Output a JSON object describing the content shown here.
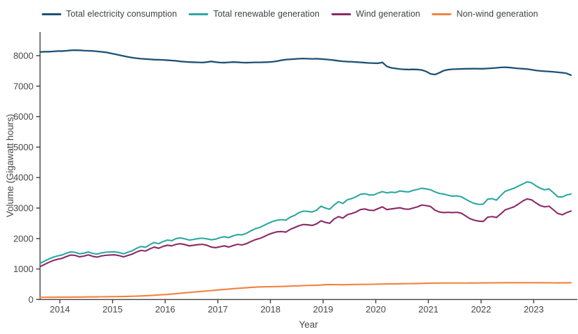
{
  "page": {
    "background": "#ffffff"
  },
  "axes": {
    "x": {
      "label": "Year",
      "ticks": [
        "2014",
        "2015",
        "2016",
        "2017",
        "2018",
        "2019",
        "2020",
        "2021",
        "2022",
        "2023"
      ]
    },
    "y": {
      "label": "Volume (Gigawatt hours)",
      "ticks": [
        0,
        1000,
        2000,
        3000,
        4000,
        5000,
        6000,
        7000,
        8000
      ]
    }
  },
  "chart_data": {
    "type": "line",
    "title": "",
    "xlabel": "Year",
    "ylabel": "Volume (Gigawatt hours)",
    "legend_position": "top",
    "grid": false,
    "xlim": [
      2013.58,
      2023.83
    ],
    "ylim": [
      0,
      8750
    ],
    "x_sampling": "monthly",
    "x_first_point": "2013-08",
    "x_last_point": "2023-09",
    "x_start": 2013.625,
    "x_step": 0.0833333,
    "n_points": 122,
    "xticks": [
      2014,
      2015,
      2016,
      2017,
      2018,
      2019,
      2020,
      2021,
      2022,
      2023
    ],
    "yticks": [
      0,
      1000,
      2000,
      3000,
      4000,
      5000,
      6000,
      7000,
      8000
    ],
    "series": [
      {
        "name": "Total electricity consumption",
        "color": "#1e5175",
        "values": [
          8120,
          8130,
          8130,
          8140,
          8150,
          8150,
          8160,
          8175,
          8180,
          8175,
          8165,
          8160,
          8155,
          8140,
          8125,
          8110,
          8080,
          8050,
          8020,
          7990,
          7960,
          7935,
          7915,
          7900,
          7890,
          7880,
          7870,
          7865,
          7860,
          7850,
          7840,
          7830,
          7810,
          7800,
          7790,
          7785,
          7780,
          7775,
          7790,
          7810,
          7790,
          7775,
          7770,
          7780,
          7790,
          7785,
          7775,
          7770,
          7775,
          7780,
          7780,
          7785,
          7790,
          7800,
          7820,
          7850,
          7870,
          7880,
          7890,
          7900,
          7905,
          7900,
          7895,
          7900,
          7890,
          7880,
          7865,
          7850,
          7830,
          7815,
          7805,
          7800,
          7790,
          7780,
          7770,
          7760,
          7755,
          7750,
          7780,
          7650,
          7600,
          7580,
          7560,
          7550,
          7545,
          7550,
          7545,
          7530,
          7480,
          7400,
          7380,
          7440,
          7510,
          7540,
          7555,
          7560,
          7565,
          7570,
          7570,
          7575,
          7570,
          7570,
          7580,
          7590,
          7600,
          7615,
          7620,
          7610,
          7595,
          7580,
          7570,
          7560,
          7540,
          7515,
          7500,
          7490,
          7480,
          7470,
          7455,
          7440,
          7420,
          7360
        ]
      },
      {
        "name": "Total renewable generation",
        "color": "#2aa8a0",
        "values": [
          1190,
          1260,
          1330,
          1390,
          1430,
          1460,
          1520,
          1560,
          1545,
          1500,
          1520,
          1560,
          1510,
          1490,
          1530,
          1550,
          1560,
          1565,
          1540,
          1500,
          1550,
          1600,
          1680,
          1740,
          1710,
          1800,
          1870,
          1830,
          1900,
          1950,
          1930,
          2000,
          2020,
          1990,
          1950,
          1970,
          2000,
          2010,
          1990,
          1960,
          1980,
          2030,
          2060,
          2030,
          2090,
          2130,
          2120,
          2170,
          2250,
          2320,
          2360,
          2430,
          2500,
          2560,
          2600,
          2620,
          2600,
          2700,
          2760,
          2850,
          2900,
          2890,
          2870,
          2930,
          3060,
          3000,
          2960,
          3100,
          3210,
          3150,
          3270,
          3310,
          3370,
          3450,
          3470,
          3430,
          3430,
          3490,
          3540,
          3500,
          3520,
          3510,
          3560,
          3540,
          3530,
          3580,
          3610,
          3650,
          3630,
          3600,
          3530,
          3480,
          3460,
          3420,
          3390,
          3400,
          3370,
          3290,
          3210,
          3150,
          3120,
          3130,
          3290,
          3310,
          3260,
          3410,
          3550,
          3600,
          3650,
          3720,
          3790,
          3860,
          3830,
          3730,
          3650,
          3600,
          3630,
          3500,
          3370,
          3360,
          3430,
          3460
        ]
      },
      {
        "name": "Wind generation",
        "color": "#8b2866",
        "values": [
          1080,
          1150,
          1220,
          1280,
          1320,
          1350,
          1410,
          1460,
          1445,
          1400,
          1425,
          1465,
          1415,
          1390,
          1430,
          1450,
          1460,
          1465,
          1440,
          1400,
          1445,
          1490,
          1560,
          1610,
          1590,
          1660,
          1720,
          1680,
          1740,
          1780,
          1760,
          1810,
          1830,
          1800,
          1760,
          1780,
          1800,
          1810,
          1780,
          1720,
          1700,
          1730,
          1760,
          1720,
          1770,
          1810,
          1790,
          1830,
          1900,
          1960,
          2000,
          2060,
          2130,
          2180,
          2220,
          2230,
          2210,
          2300,
          2360,
          2420,
          2460,
          2450,
          2430,
          2480,
          2580,
          2530,
          2500,
          2640,
          2720,
          2670,
          2780,
          2820,
          2870,
          2950,
          2970,
          2930,
          2920,
          2980,
          3040,
          2950,
          2970,
          2990,
          3010,
          2970,
          2960,
          3000,
          3040,
          3100,
          3080,
          3050,
          2930,
          2870,
          2850,
          2860,
          2850,
          2860,
          2830,
          2740,
          2650,
          2600,
          2570,
          2560,
          2700,
          2720,
          2690,
          2810,
          2940,
          2990,
          3040,
          3130,
          3230,
          3300,
          3270,
          3170,
          3080,
          3040,
          3060,
          2940,
          2820,
          2780,
          2850,
          2900
        ]
      },
      {
        "name": "Non-wind generation",
        "color": "#f2823f",
        "values": [
          70,
          72,
          73,
          74,
          75,
          75,
          76,
          77,
          78,
          80,
          82,
          84,
          85,
          87,
          89,
          91,
          93,
          95,
          97,
          99,
          102,
          106,
          110,
          116,
          122,
          130,
          140,
          150,
          158,
          165,
          178,
          192,
          205,
          218,
          230,
          243,
          255,
          268,
          280,
          292,
          305,
          318,
          330,
          342,
          355,
          365,
          375,
          385,
          395,
          405,
          412,
          416,
          418,
          420,
          424,
          428,
          432,
          438,
          444,
          450,
          455,
          460,
          465,
          468,
          472,
          488,
          490,
          488,
          486,
          485,
          488,
          490,
          492,
          494,
          495,
          497,
          500,
          505,
          508,
          510,
          512,
          514,
          516,
          518,
          520,
          522,
          525,
          528,
          532,
          536,
          538,
          539,
          540,
          540,
          540,
          540,
          540,
          540,
          541,
          542,
          543,
          544,
          545,
          546,
          547,
          548,
          549,
          550,
          550,
          550,
          550,
          550,
          550,
          550,
          549,
          548,
          547,
          546,
          545,
          545,
          548,
          550
        ]
      }
    ]
  }
}
